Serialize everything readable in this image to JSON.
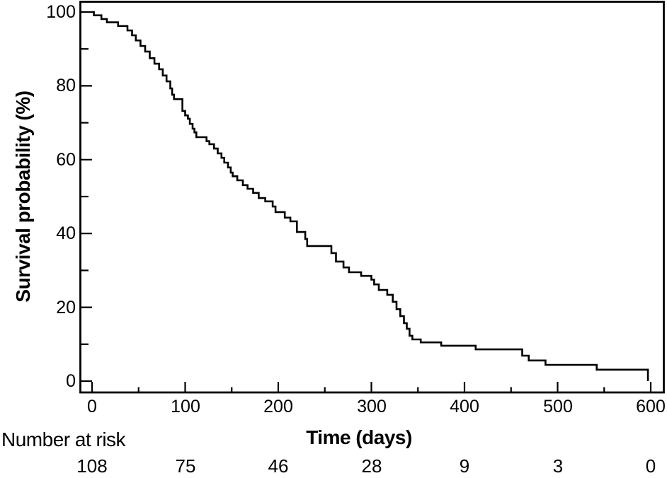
{
  "figure": {
    "background": "#ffffff",
    "line_color": "#000000",
    "text_color": "#000000"
  },
  "chart_data": {
    "type": "line",
    "subtype": "kaplan-meier-step-curve",
    "title": "",
    "xlabel": "Time (days)",
    "ylabel": "Survival probability (%)",
    "xlim": [
      0,
      600
    ],
    "ylim": [
      0,
      100
    ],
    "grid": false,
    "legend": false,
    "x_major_ticks": [
      0,
      100,
      200,
      300,
      400,
      500,
      600
    ],
    "x_minor_ticks": [
      50,
      150,
      250,
      350,
      450,
      550
    ],
    "y_major_ticks": [
      0,
      20,
      40,
      60,
      80,
      100
    ],
    "y_minor_ticks": [
      10,
      30,
      50,
      70,
      90
    ],
    "series": [
      {
        "name": "survival",
        "points": [
          [
            0,
            100
          ],
          [
            2,
            99.1
          ],
          [
            10,
            98.1
          ],
          [
            16,
            97.2
          ],
          [
            28,
            96.2
          ],
          [
            38,
            95.0
          ],
          [
            43,
            93.7
          ],
          [
            47,
            92.3
          ],
          [
            52,
            90.8
          ],
          [
            57,
            89.3
          ],
          [
            62,
            87.5
          ],
          [
            67,
            86.0
          ],
          [
            72,
            84.5
          ],
          [
            76,
            82.8
          ],
          [
            80,
            81.2
          ],
          [
            84,
            79.3
          ],
          [
            86,
            77.6
          ],
          [
            88,
            76.4
          ],
          [
            97,
            73.2
          ],
          [
            100,
            72.0
          ],
          [
            103,
            71.1
          ],
          [
            105,
            69.7
          ],
          [
            108,
            68.4
          ],
          [
            110,
            67.4
          ],
          [
            112,
            66.1
          ],
          [
            123,
            65.0
          ],
          [
            126,
            64.2
          ],
          [
            131,
            63.0
          ],
          [
            135,
            61.7
          ],
          [
            139,
            60.5
          ],
          [
            142,
            59.2
          ],
          [
            146,
            57.9
          ],
          [
            149,
            56.5
          ],
          [
            151,
            55.5
          ],
          [
            156,
            54.4
          ],
          [
            162,
            53.1
          ],
          [
            167,
            52.1
          ],
          [
            173,
            51.0
          ],
          [
            179,
            49.6
          ],
          [
            186,
            48.7
          ],
          [
            194,
            47.3
          ],
          [
            197,
            45.8
          ],
          [
            207,
            44.3
          ],
          [
            213,
            43.3
          ],
          [
            220,
            40.4
          ],
          [
            229,
            38.5
          ],
          [
            231,
            36.6
          ],
          [
            257,
            34.7
          ],
          [
            262,
            32.4
          ],
          [
            270,
            30.8
          ],
          [
            276,
            29.5
          ],
          [
            289,
            28.5
          ],
          [
            300,
            27.5
          ],
          [
            303,
            26.2
          ],
          [
            308,
            24.7
          ],
          [
            317,
            23.4
          ],
          [
            323,
            21.5
          ],
          [
            327,
            19.5
          ],
          [
            331,
            17.6
          ],
          [
            335,
            15.7
          ],
          [
            338,
            14.2
          ],
          [
            341,
            12.3
          ],
          [
            344,
            11.3
          ],
          [
            353,
            10.5
          ],
          [
            375,
            9.6
          ],
          [
            412,
            8.6
          ],
          [
            462,
            6.9
          ],
          [
            469,
            5.6
          ],
          [
            487,
            4.4
          ],
          [
            542,
            3.1
          ],
          [
            597,
            0
          ]
        ]
      }
    ],
    "number_at_risk": {
      "label": "Number at risk",
      "times": [
        0,
        100,
        200,
        300,
        400,
        500,
        600
      ],
      "counts": [
        108,
        75,
        46,
        28,
        9,
        3,
        0
      ]
    }
  }
}
